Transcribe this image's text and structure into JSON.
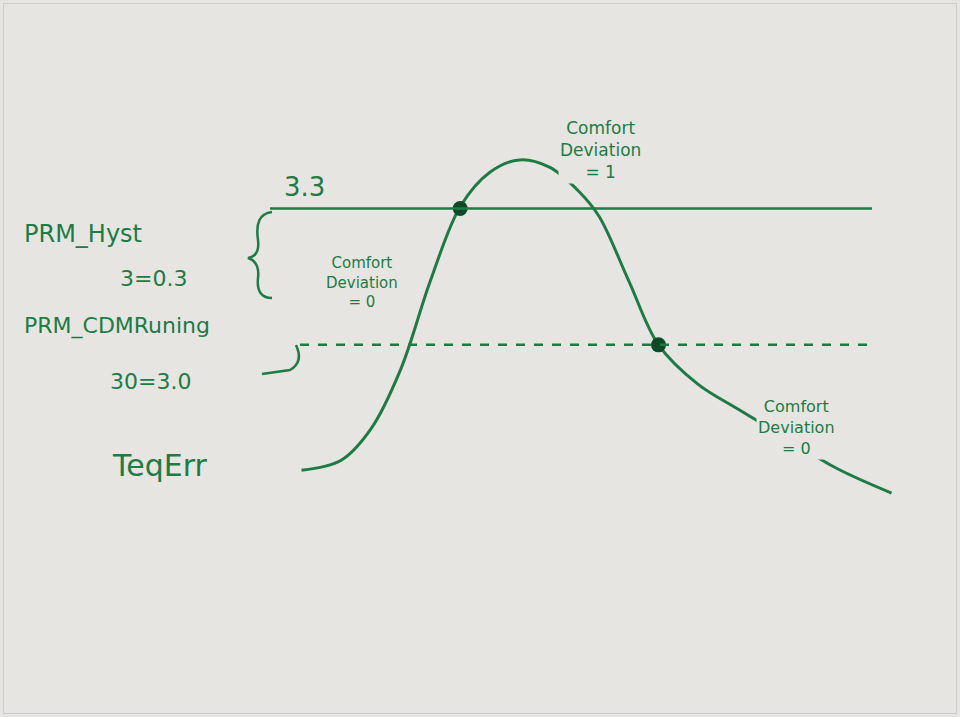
{
  "chart_data": {
    "type": "line",
    "x": [
      3.0,
      3.4,
      3.7,
      4.0,
      4.3,
      4.6,
      4.9,
      5.2,
      5.5,
      5.8,
      6.0,
      6.3,
      6.6,
      7.0,
      7.4,
      7.9,
      8.4,
      8.95
    ],
    "series": [
      {
        "name": "TeqErr",
        "color": "#1e7b45",
        "values": [
          2.724,
          2.746,
          2.815,
          2.946,
          3.141,
          3.304,
          3.38,
          3.407,
          3.391,
          3.337,
          3.283,
          3.141,
          3.0,
          2.913,
          2.859,
          2.793,
          2.728,
          2.674
        ]
      }
    ],
    "xlim": [
      0,
      9.6
    ],
    "ylim": [
      2.19,
      3.75
    ],
    "xticks": [],
    "yticks": [],
    "tick_labels": false,
    "grid": false,
    "lines": [
      {
        "value": 3.3,
        "label": "3.3",
        "line_style": "solid"
      },
      {
        "value": 3.0,
        "line_style": "dash"
      }
    ],
    "points": {
      "x": [
        4.6,
        6.6
      ],
      "y": [
        3.3,
        3.0
      ]
    },
    "annotations": [
      {
        "text": [
          "PRM_Hyst"
        ]
      },
      {
        "text": [
          "3=0.3"
        ]
      },
      {
        "text": [
          "PRM_CDMRuning"
        ]
      },
      {
        "text": [
          "30=3.0"
        ]
      },
      {
        "text": [
          "Comfort",
          "Deviation",
          "= 0"
        ]
      },
      {
        "text": [
          "Comfort",
          "Deviation",
          "= 1"
        ]
      },
      {
        "text": [
          "Comfort",
          "Deviation",
          "= 0"
        ]
      }
    ]
  }
}
